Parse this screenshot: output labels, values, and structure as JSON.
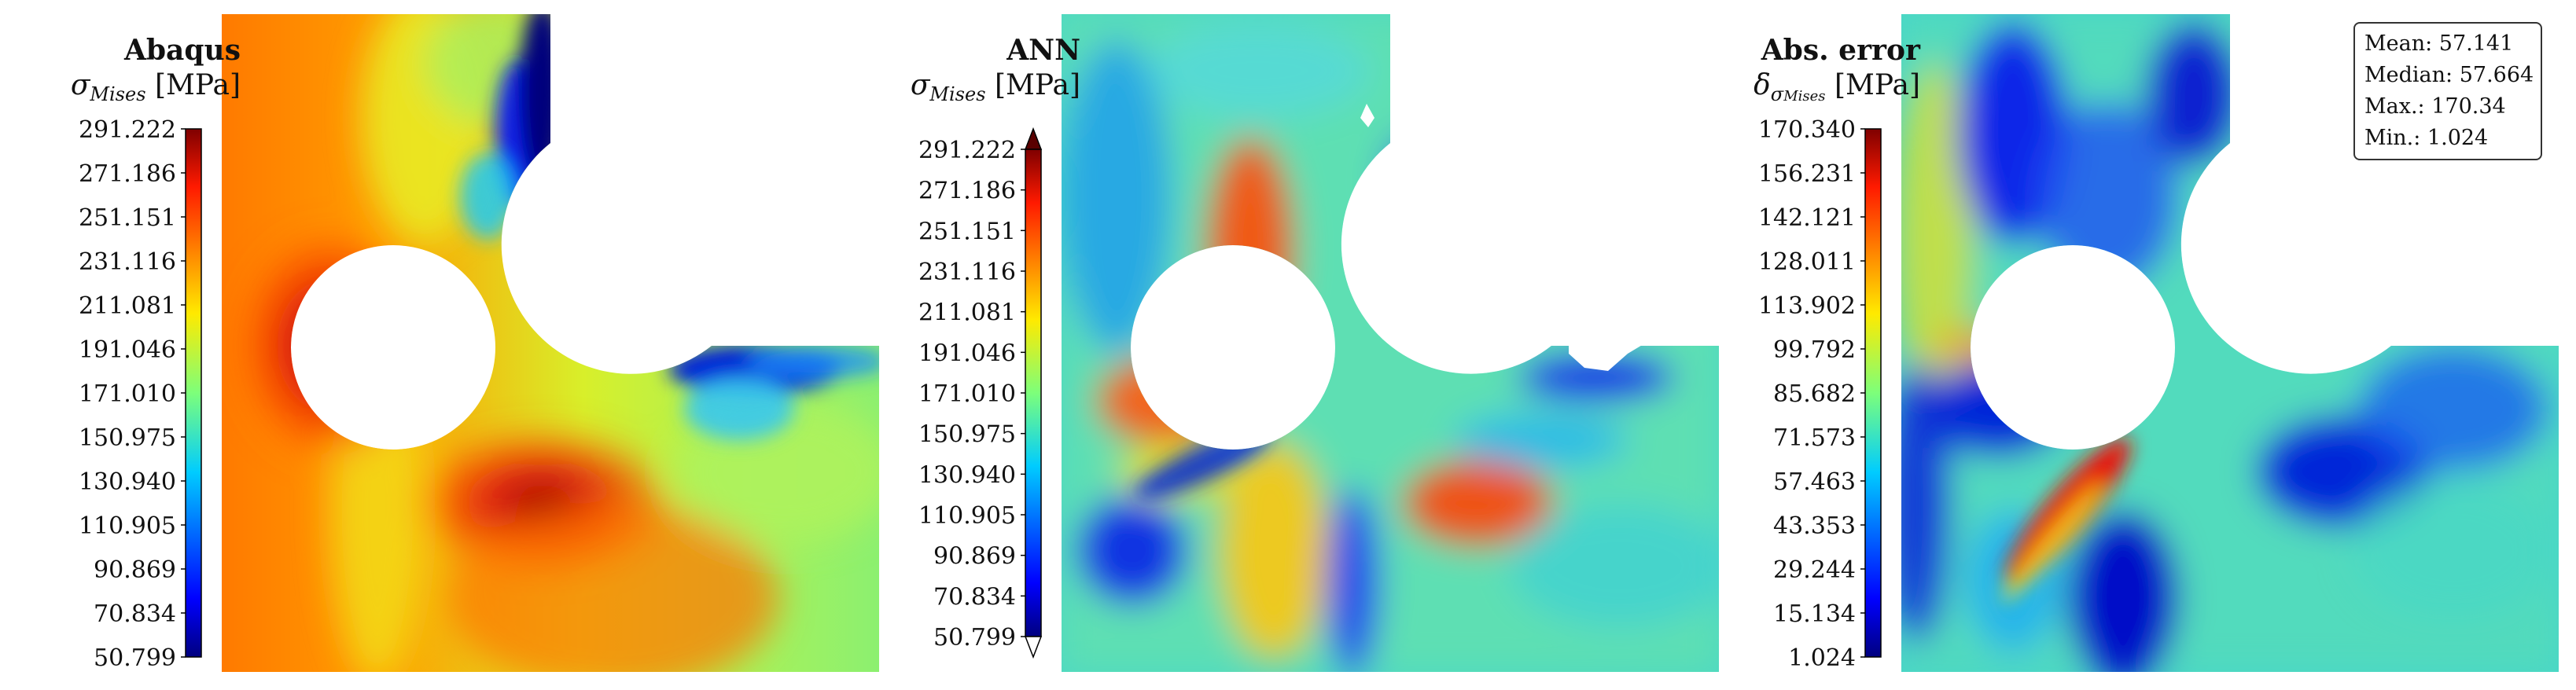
{
  "panels": [
    {
      "title": "Abaqus",
      "qty_symbol": "σ",
      "qty_sub": "Mises",
      "qty_unit": "[MPa]",
      "ticks": [
        "291.222",
        "271.186",
        "251.151",
        "231.116",
        "211.081",
        "191.046",
        "171.010",
        "150.975",
        "130.940",
        "110.905",
        "90.869",
        "70.834",
        "50.799"
      ],
      "extend_arrows": false
    },
    {
      "title": "ANN",
      "qty_symbol": "σ",
      "qty_sub": "Mises",
      "qty_unit": "[MPa]",
      "ticks": [
        "291.222",
        "271.186",
        "251.151",
        "231.116",
        "211.081",
        "191.046",
        "171.010",
        "150.975",
        "130.940",
        "110.905",
        "90.869",
        "70.834",
        "50.799"
      ],
      "extend_arrows": true
    },
    {
      "title": "Abs. error",
      "qty_symbol": "δ",
      "qty_sub_symbol": "σ",
      "qty_sub": "Mises",
      "qty_unit": "[MPa]",
      "ticks": [
        "170.340",
        "156.231",
        "142.121",
        "128.011",
        "113.902",
        "99.792",
        "85.682",
        "71.573",
        "57.463",
        "43.353",
        "29.244",
        "15.134",
        "1.024"
      ],
      "extend_arrows": false
    }
  ],
  "stats": {
    "mean": "Mean: 57.141",
    "median": "Median: 57.664",
    "max": "Max.: 170.34",
    "min": "Min.: 1.024"
  },
  "colormap": "jet",
  "colors": {
    "dark_red": "#7f0000",
    "red": "#e8270e",
    "orange": "#ff8c00",
    "yellow": "#e6e619",
    "green": "#7df07a",
    "cyan": "#19c0ee",
    "blue": "#0033ff",
    "dark_blue": "#00007f"
  }
}
